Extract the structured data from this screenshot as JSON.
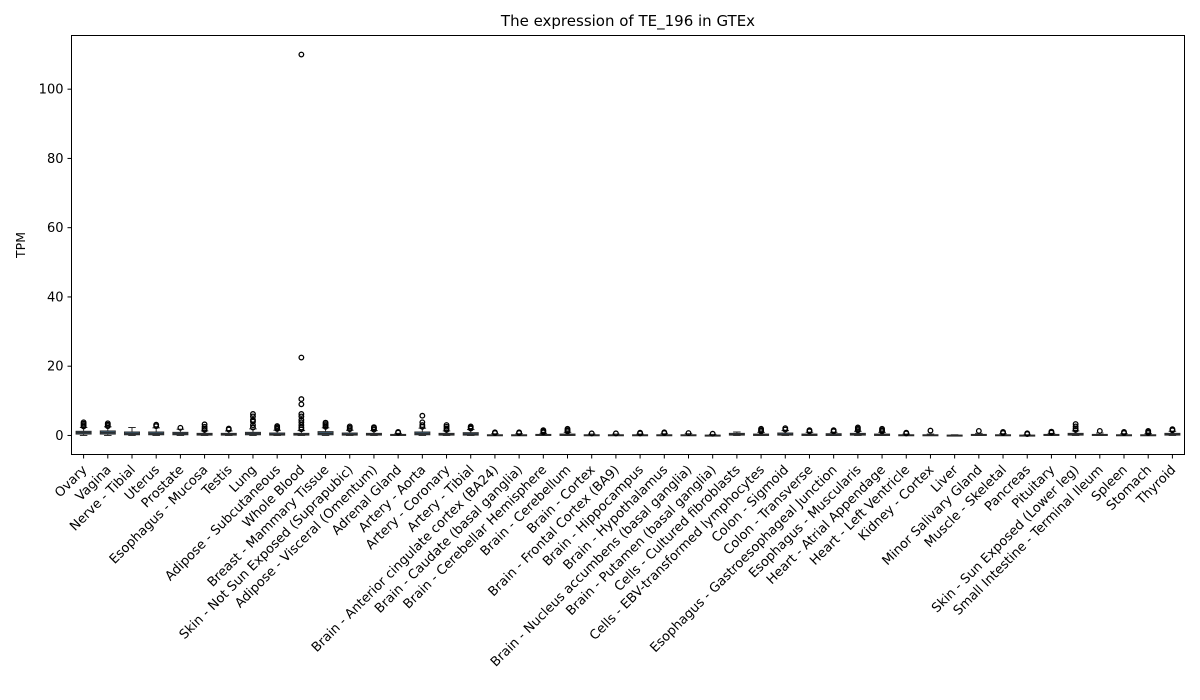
{
  "chart_data": {
    "type": "box",
    "title": "The expression of TE_196 in GTEx",
    "xlabel": "",
    "ylabel": "TPM",
    "ylim": [
      -5.5,
      115.5
    ],
    "yticks": [
      0,
      20,
      40,
      60,
      80,
      100
    ],
    "grid": false,
    "legend": "none",
    "colors": {
      "box_fill": "#3e6886",
      "box_edge": "#2b2b2b",
      "median": "#2b2b2b",
      "flier": "#000000"
    },
    "categories": [
      "Ovary",
      "Vagina",
      "Nerve - Tibial",
      "Uterus",
      "Prostate",
      "Esophagus - Mucosa",
      "Testis",
      "Lung",
      "Adipose - Subcutaneous",
      "Whole Blood",
      "Breast - Mammary Tissue",
      "Skin - Not Sun Exposed (Suprapubic)",
      "Adipose - Visceral (Omentum)",
      "Adrenal Gland",
      "Artery - Aorta",
      "Artery - Coronary",
      "Artery - Tibial",
      "Brain - Anterior cingulate cortex (BA24)",
      "Brain - Caudate (basal ganglia)",
      "Brain - Cerebellar Hemisphere",
      "Brain - Cerebellum",
      "Brain - Cortex",
      "Brain - Frontal Cortex (BA9)",
      "Brain - Hippocampus",
      "Brain - Hypothalamus",
      "Brain - Nucleus accumbens (basal ganglia)",
      "Brain - Putamen (basal ganglia)",
      "Cells - Cultured fibroblasts",
      "Cells - EBV-transformed lymphocytes",
      "Colon - Sigmoid",
      "Colon - Transverse",
      "Esophagus - Gastroesophageal Junction",
      "Esophagus - Muscularis",
      "Heart - Atrial Appendage",
      "Heart - Left Ventricle",
      "Kidney - Cortex",
      "Liver",
      "Minor Salivary Gland",
      "Muscle - Skeletal",
      "Pancreas",
      "Pituitary",
      "Skin - Sun Exposed (Lower leg)",
      "Small Intestine - Terminal Ileum",
      "Spleen",
      "Stomach",
      "Thyroid"
    ],
    "boxes": [
      {
        "q1": 0.4,
        "median": 0.8,
        "q3": 1.2,
        "whislo": 0.0,
        "whishi": 2.3,
        "fliers": [
          2.6,
          3.0,
          3.4,
          3.8
        ]
      },
      {
        "q1": 0.4,
        "median": 0.8,
        "q3": 1.3,
        "whislo": 0.0,
        "whishi": 2.5,
        "fliers": [
          2.7,
          3.1,
          3.5
        ]
      },
      {
        "q1": 0.2,
        "median": 0.5,
        "q3": 1.0,
        "whislo": 0.0,
        "whishi": 2.3,
        "fliers": []
      },
      {
        "q1": 0.2,
        "median": 0.5,
        "q3": 1.0,
        "whislo": 0.0,
        "whishi": 2.2,
        "fliers": [
          2.7,
          3.1
        ]
      },
      {
        "q1": 0.2,
        "median": 0.5,
        "q3": 0.9,
        "whislo": 0.0,
        "whishi": 1.8,
        "fliers": [
          2.2
        ]
      },
      {
        "q1": 0.1,
        "median": 0.3,
        "q3": 0.6,
        "whislo": 0.0,
        "whishi": 1.3,
        "fliers": [
          1.6,
          2.0,
          2.5,
          3.2
        ]
      },
      {
        "q1": 0.1,
        "median": 0.3,
        "q3": 0.6,
        "whislo": 0.0,
        "whishi": 1.3,
        "fliers": [
          1.7,
          2.0
        ]
      },
      {
        "q1": 0.2,
        "median": 0.5,
        "q3": 0.9,
        "whislo": 0.0,
        "whishi": 1.9,
        "fliers": [
          2.3,
          3.0,
          4.0,
          4.5,
          5.5,
          6.2
        ]
      },
      {
        "q1": 0.1,
        "median": 0.3,
        "q3": 0.7,
        "whislo": 0.0,
        "whishi": 1.5,
        "fliers": [
          1.9,
          2.3,
          2.7
        ]
      },
      {
        "q1": 0.1,
        "median": 0.3,
        "q3": 0.6,
        "whislo": 0.0,
        "whishi": 1.4,
        "fliers": [
          1.8,
          2.3,
          3.0,
          3.8,
          4.5,
          5.5,
          6.2,
          9.0,
          10.5,
          22.5,
          110.0
        ]
      },
      {
        "q1": 0.2,
        "median": 0.6,
        "q3": 1.1,
        "whislo": 0.0,
        "whishi": 2.2,
        "fliers": [
          2.5,
          2.9,
          3.3,
          3.7
        ]
      },
      {
        "q1": 0.1,
        "median": 0.3,
        "q3": 0.7,
        "whislo": 0.0,
        "whishi": 1.5,
        "fliers": [
          1.8,
          2.2,
          2.6
        ]
      },
      {
        "q1": 0.1,
        "median": 0.3,
        "q3": 0.6,
        "whislo": 0.0,
        "whishi": 1.4,
        "fliers": [
          1.7,
          2.1,
          2.4
        ]
      },
      {
        "q1": 0.0,
        "median": 0.1,
        "q3": 0.3,
        "whislo": 0.0,
        "whishi": 0.6,
        "fliers": [
          0.8,
          1.0
        ]
      },
      {
        "q1": 0.2,
        "median": 0.5,
        "q3": 1.0,
        "whislo": 0.0,
        "whishi": 2.1,
        "fliers": [
          2.5,
          3.0,
          3.8,
          5.7
        ]
      },
      {
        "q1": 0.1,
        "median": 0.3,
        "q3": 0.6,
        "whislo": 0.0,
        "whishi": 1.3,
        "fliers": [
          1.6,
          2.0,
          2.5,
          3.0
        ]
      },
      {
        "q1": 0.1,
        "median": 0.4,
        "q3": 0.8,
        "whislo": 0.0,
        "whishi": 1.7,
        "fliers": [
          2.0,
          2.3,
          2.6
        ]
      },
      {
        "q1": 0.0,
        "median": 0.1,
        "q3": 0.2,
        "whislo": 0.0,
        "whishi": 0.5,
        "fliers": [
          0.7,
          0.9
        ]
      },
      {
        "q1": 0.0,
        "median": 0.1,
        "q3": 0.2,
        "whislo": 0.0,
        "whishi": 0.5,
        "fliers": [
          0.7,
          0.9
        ]
      },
      {
        "q1": 0.0,
        "median": 0.1,
        "q3": 0.3,
        "whislo": 0.0,
        "whishi": 0.6,
        "fliers": [
          0.9,
          1.2,
          1.5
        ]
      },
      {
        "q1": 0.0,
        "median": 0.2,
        "q3": 0.4,
        "whislo": 0.0,
        "whishi": 0.9,
        "fliers": [
          1.2,
          1.5,
          1.9
        ]
      },
      {
        "q1": 0.0,
        "median": 0.1,
        "q3": 0.2,
        "whislo": 0.0,
        "whishi": 0.4,
        "fliers": [
          0.6
        ]
      },
      {
        "q1": 0.0,
        "median": 0.1,
        "q3": 0.2,
        "whislo": 0.0,
        "whishi": 0.4,
        "fliers": [
          0.6
        ]
      },
      {
        "q1": 0.0,
        "median": 0.1,
        "q3": 0.2,
        "whislo": 0.0,
        "whishi": 0.4,
        "fliers": [
          0.6,
          0.8
        ]
      },
      {
        "q1": 0.0,
        "median": 0.1,
        "q3": 0.2,
        "whislo": 0.0,
        "whishi": 0.5,
        "fliers": [
          0.7,
          0.9
        ]
      },
      {
        "q1": 0.0,
        "median": 0.1,
        "q3": 0.2,
        "whislo": 0.0,
        "whishi": 0.5,
        "fliers": [
          0.7
        ]
      },
      {
        "q1": 0.0,
        "median": 0.0,
        "q3": 0.1,
        "whislo": 0.0,
        "whishi": 0.3,
        "fliers": [
          0.5
        ]
      },
      {
        "q1": 0.1,
        "median": 0.3,
        "q3": 0.6,
        "whislo": 0.0,
        "whishi": 1.0,
        "fliers": []
      },
      {
        "q1": 0.0,
        "median": 0.2,
        "q3": 0.4,
        "whislo": 0.0,
        "whishi": 0.9,
        "fliers": [
          1.2,
          1.5,
          1.9
        ]
      },
      {
        "q1": 0.1,
        "median": 0.3,
        "q3": 0.7,
        "whislo": 0.0,
        "whishi": 1.4,
        "fliers": [
          1.7,
          2.1
        ]
      },
      {
        "q1": 0.0,
        "median": 0.2,
        "q3": 0.4,
        "whislo": 0.0,
        "whishi": 0.9,
        "fliers": [
          1.2,
          1.5
        ]
      },
      {
        "q1": 0.0,
        "median": 0.2,
        "q3": 0.5,
        "whislo": 0.0,
        "whishi": 0.9,
        "fliers": [
          1.2,
          1.5
        ]
      },
      {
        "q1": 0.1,
        "median": 0.3,
        "q3": 0.6,
        "whislo": 0.0,
        "whishi": 1.2,
        "fliers": [
          1.5,
          1.9,
          2.3
        ]
      },
      {
        "q1": 0.0,
        "median": 0.2,
        "q3": 0.4,
        "whislo": 0.0,
        "whishi": 0.9,
        "fliers": [
          1.2,
          1.5,
          1.9
        ]
      },
      {
        "q1": 0.0,
        "median": 0.1,
        "q3": 0.2,
        "whislo": 0.0,
        "whishi": 0.4,
        "fliers": [
          0.6,
          0.8
        ]
      },
      {
        "q1": 0.0,
        "median": 0.1,
        "q3": 0.2,
        "whislo": 0.0,
        "whishi": 0.4,
        "fliers": [
          1.4
        ]
      },
      {
        "q1": 0.0,
        "median": 0.0,
        "q3": 0.1,
        "whislo": 0.0,
        "whishi": 0.2,
        "fliers": []
      },
      {
        "q1": 0.0,
        "median": 0.1,
        "q3": 0.3,
        "whislo": 0.0,
        "whishi": 0.6,
        "fliers": [
          1.3
        ]
      },
      {
        "q1": 0.0,
        "median": 0.1,
        "q3": 0.2,
        "whislo": 0.0,
        "whishi": 0.5,
        "fliers": [
          0.7,
          1.0
        ]
      },
      {
        "q1": 0.0,
        "median": 0.0,
        "q3": 0.1,
        "whislo": 0.0,
        "whishi": 0.2,
        "fliers": [
          0.4,
          0.6
        ]
      },
      {
        "q1": 0.0,
        "median": 0.1,
        "q3": 0.3,
        "whislo": 0.0,
        "whishi": 0.6,
        "fliers": [
          0.8,
          1.1
        ]
      },
      {
        "q1": 0.1,
        "median": 0.3,
        "q3": 0.6,
        "whislo": 0.0,
        "whishi": 1.3,
        "fliers": [
          1.6,
          2.0,
          2.6,
          3.3
        ]
      },
      {
        "q1": 0.0,
        "median": 0.1,
        "q3": 0.3,
        "whislo": 0.0,
        "whishi": 0.7,
        "fliers": [
          1.3
        ]
      },
      {
        "q1": 0.0,
        "median": 0.1,
        "q3": 0.2,
        "whislo": 0.0,
        "whishi": 0.5,
        "fliers": [
          0.7,
          1.0
        ]
      },
      {
        "q1": 0.0,
        "median": 0.1,
        "q3": 0.2,
        "whislo": 0.0,
        "whishi": 0.5,
        "fliers": [
          0.7,
          1.0,
          1.3
        ]
      },
      {
        "q1": 0.1,
        "median": 0.3,
        "q3": 0.6,
        "whislo": 0.0,
        "whishi": 1.2,
        "fliers": [
          1.5,
          1.8
        ]
      }
    ]
  }
}
